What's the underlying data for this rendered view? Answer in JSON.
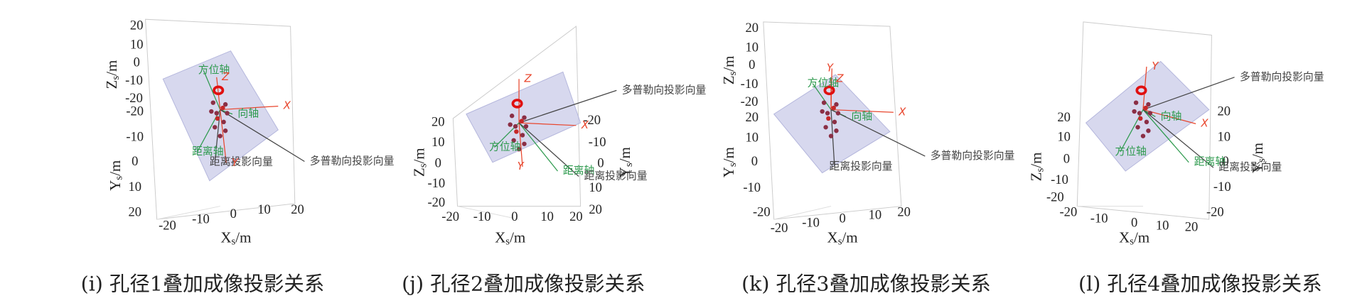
{
  "panels": [
    {
      "caption": "(i) 孔径1叠加成像投影关系",
      "axes": {
        "z": {
          "label": {
            "main": "Z",
            "sub": "s",
            "unit": "/m"
          },
          "ticks": [
            20,
            10,
            0,
            -10,
            -20
          ]
        },
        "y": {
          "label": {
            "main": "Y",
            "sub": "s",
            "unit": "/m"
          },
          "ticks": [
            -20,
            -10,
            0,
            10,
            20
          ]
        },
        "x": {
          "label": {
            "main": "X",
            "sub": "s",
            "unit": "/m"
          },
          "ticks": [
            -20,
            -10,
            0,
            10,
            20
          ]
        }
      },
      "annotations": [
        "方位轴",
        "Z",
        "向轴",
        "X",
        "距离轴",
        "距离投影向量",
        "Y",
        "多普勒向投影向量"
      ]
    },
    {
      "caption": "(j) 孔径2叠加成像投影关系",
      "axes": {
        "z": {
          "label": {
            "main": "Z",
            "sub": "s",
            "unit": "/m"
          },
          "ticks": [
            20,
            10,
            0,
            -10,
            -20
          ]
        },
        "y": {
          "label": {
            "main": "Y",
            "sub": "s",
            "unit": "/m"
          },
          "ticks": [
            -20,
            -10,
            0,
            10,
            20
          ]
        },
        "x": {
          "label": {
            "main": "X",
            "sub": "s",
            "unit": "/m"
          },
          "ticks": [
            -20,
            -10,
            0,
            10,
            20
          ]
        }
      },
      "annotations": [
        "Z",
        "多普勒向投影向量",
        "X",
        "方位轴",
        "Y",
        "距离轴",
        "距离投影向量"
      ]
    },
    {
      "caption": "(k) 孔径3叠加成像投影关系",
      "axes": {
        "z": {
          "label": {
            "main": "Z",
            "sub": "s",
            "unit": "/m"
          },
          "ticks": [
            20,
            10,
            0,
            -10,
            -20
          ]
        },
        "y": {
          "label": {
            "main": "Y",
            "sub": "s",
            "unit": "/m"
          },
          "ticks": [
            20,
            10,
            0,
            -10,
            -20
          ]
        },
        "x": {
          "label": {
            "main": "X",
            "sub": "s",
            "unit": "/m"
          },
          "ticks": [
            -20,
            -10,
            0,
            10,
            20
          ]
        }
      },
      "annotations": [
        "方位轴",
        "Y",
        "Z",
        "向轴",
        "X",
        "多普勒向投影向量",
        "距离投影向量"
      ]
    },
    {
      "caption": "(l) 孔径4叠加成像投影关系",
      "axes": {
        "z": {
          "label": {
            "main": "Z",
            "sub": "s",
            "unit": "/m"
          },
          "ticks": [
            20,
            10,
            0,
            -10,
            -20
          ]
        },
        "y": {
          "label": {
            "main": "Y",
            "sub": "s",
            "unit": "/m"
          },
          "ticks": [
            20,
            10,
            0,
            -10,
            -20
          ]
        },
        "x": {
          "label": {
            "main": "X",
            "sub": "s",
            "unit": "/m"
          },
          "ticks": [
            -20,
            -10,
            0,
            10,
            20
          ]
        }
      },
      "annotations": [
        "Y",
        "多普勒向投影向量",
        "向轴",
        "X",
        "方位轴",
        "距离轴",
        "距离投影向量"
      ]
    }
  ]
}
